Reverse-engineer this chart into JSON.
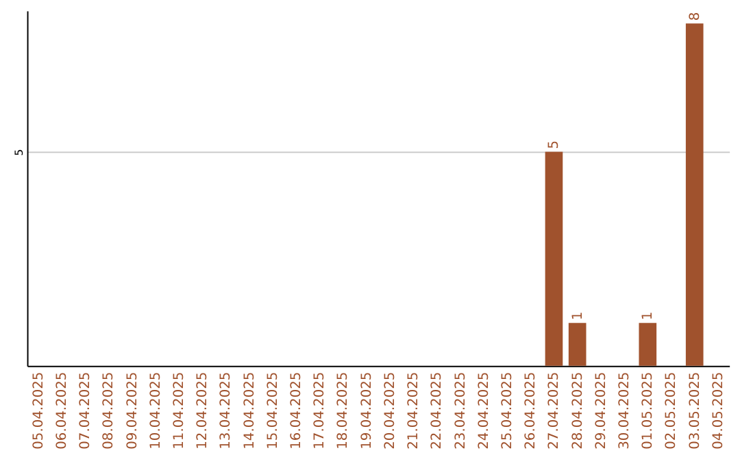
{
  "chart_data": {
    "type": "bar",
    "categories": [
      "05.04.2025",
      "06.04.2025",
      "07.04.2025",
      "08.04.2025",
      "09.04.2025",
      "10.04.2025",
      "11.04.2025",
      "12.04.2025",
      "13.04.2025",
      "14.04.2025",
      "15.04.2025",
      "16.04.2025",
      "17.04.2025",
      "18.04.2025",
      "19.04.2025",
      "20.04.2025",
      "21.04.2025",
      "22.04.2025",
      "23.04.2025",
      "24.04.2025",
      "25.04.2025",
      "26.04.2025",
      "27.04.2025",
      "28.04.2025",
      "29.04.2025",
      "30.04.2025",
      "01.05.2025",
      "02.05.2025",
      "03.05.2025",
      "04.05.2025"
    ],
    "values": [
      null,
      null,
      null,
      null,
      null,
      null,
      null,
      null,
      null,
      null,
      null,
      null,
      null,
      null,
      null,
      null,
      null,
      null,
      null,
      null,
      null,
      null,
      5,
      1,
      null,
      null,
      1,
      null,
      8,
      null
    ],
    "color": "#a0522d",
    "ylim": [
      0,
      8.3
    ],
    "yticks": [
      5
    ],
    "grid": "y",
    "data_labels": true
  }
}
